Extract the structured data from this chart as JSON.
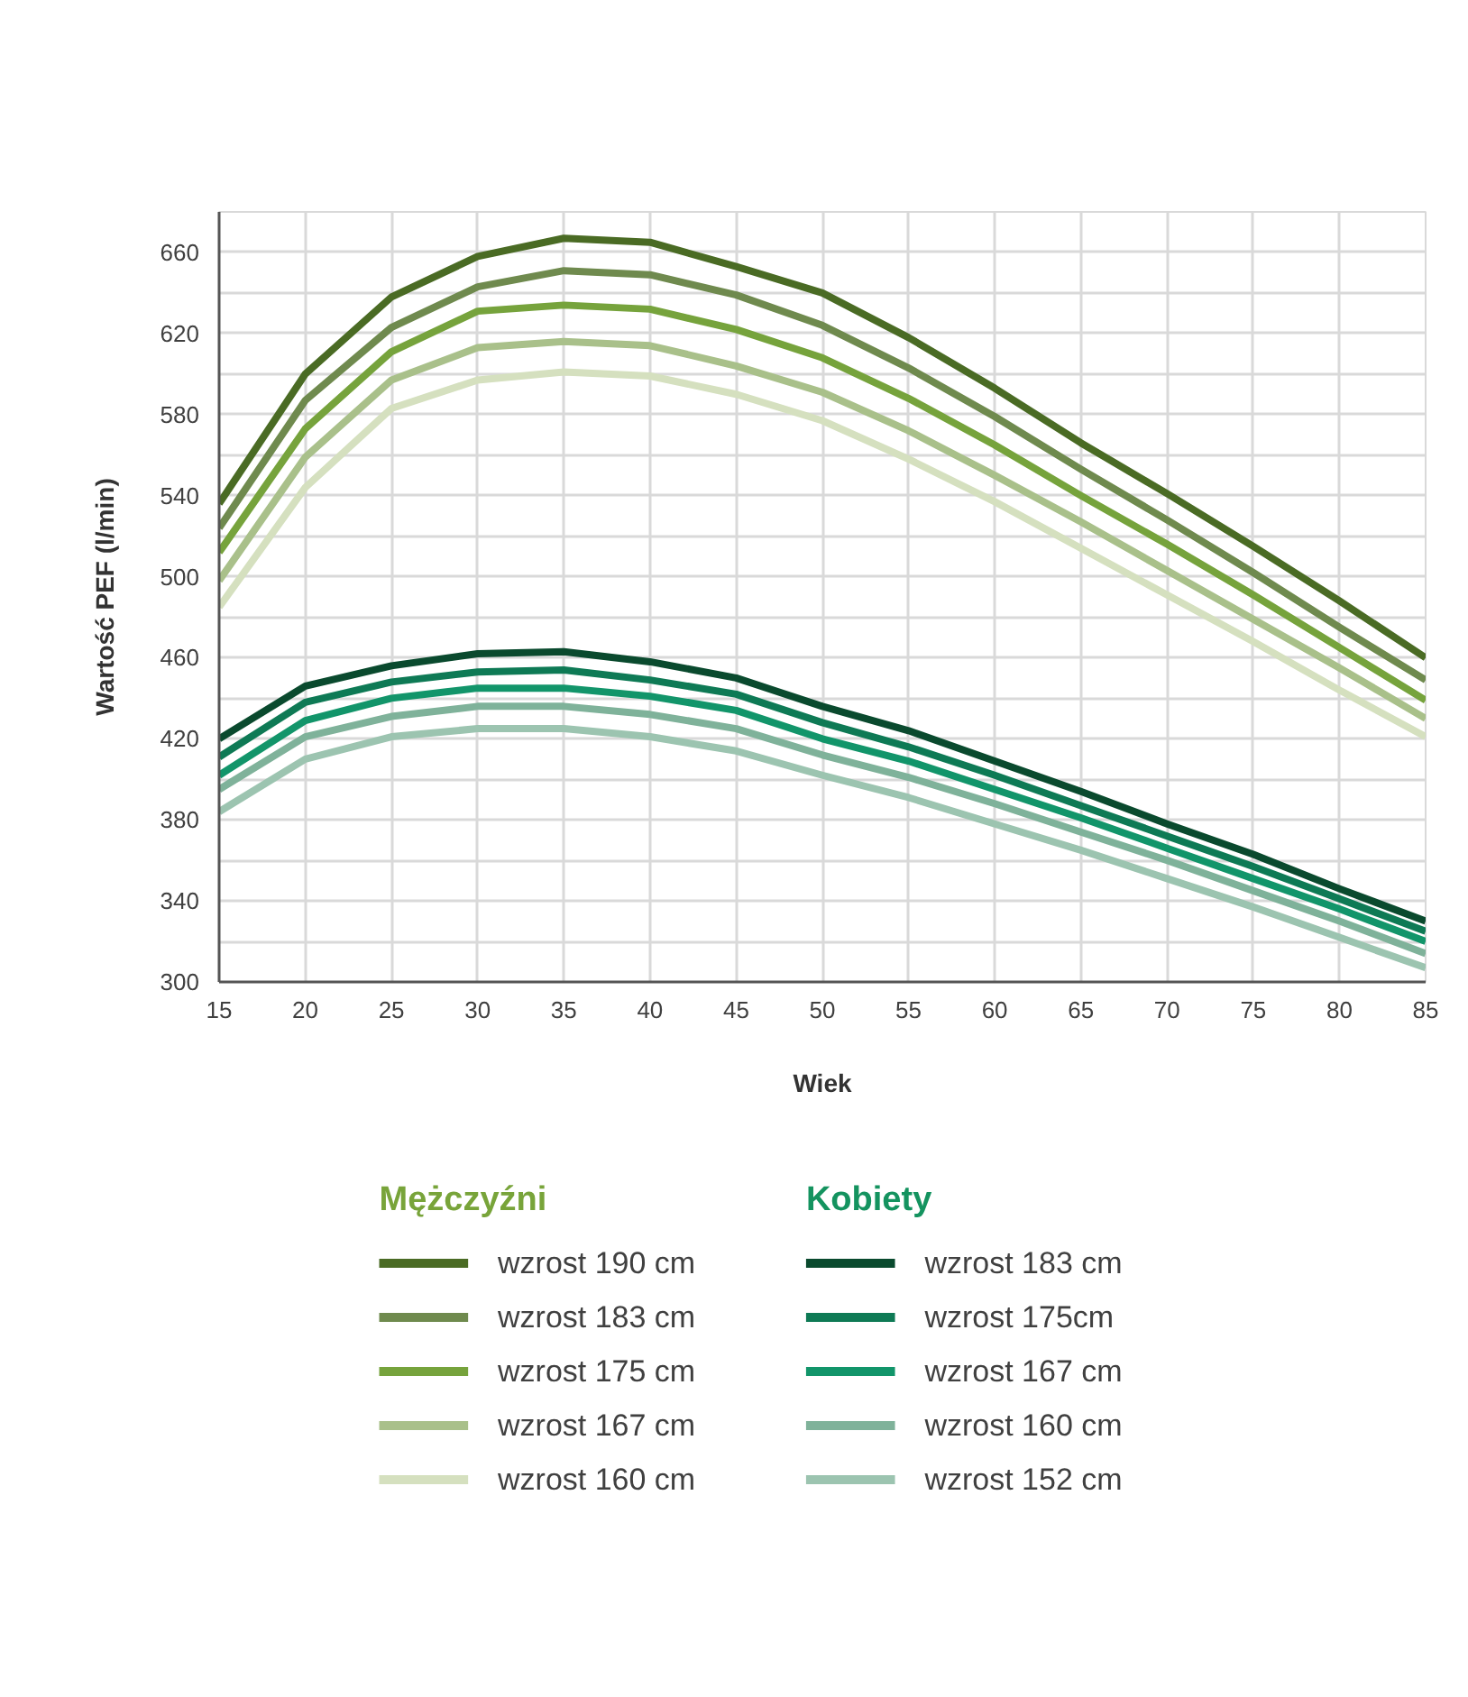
{
  "chart_data": {
    "type": "line",
    "xlabel": "Wiek",
    "ylabel": "Wartość PEF (l/min)",
    "legend_title": [
      "Mężczyźni",
      "Kobiety"
    ],
    "legend": "bottom",
    "grid": true,
    "line_style": "solid",
    "marker": "none",
    "x": [
      15,
      20,
      25,
      30,
      35,
      40,
      45,
      50,
      55,
      60,
      65,
      70,
      75,
      80,
      85
    ],
    "xlim": [
      15,
      85
    ],
    "xticks": [
      15,
      20,
      25,
      30,
      35,
      40,
      45,
      50,
      55,
      60,
      65,
      70,
      75,
      80,
      85
    ],
    "ylim": [
      300,
      680
    ],
    "yticks": [
      300,
      {
        "value": 320,
        "label": null
      },
      340,
      {
        "value": 360,
        "label": null
      },
      380,
      {
        "value": 400,
        "label": null
      },
      420,
      {
        "value": 440,
        "label": null
      },
      460,
      {
        "value": 480,
        "label": null
      },
      500,
      {
        "value": 520,
        "label": null
      },
      540,
      {
        "value": 560,
        "label": null
      },
      580,
      {
        "value": 600,
        "label": null
      },
      620,
      {
        "value": 640,
        "label": null
      },
      660,
      {
        "value": 680,
        "label": null
      }
    ],
    "series": [
      {
        "name": "wzrost 190 cm",
        "color": "#4a6b24",
        "values": [
          536,
          600,
          638,
          658,
          667,
          665,
          653,
          640,
          618,
          593,
          566,
          541,
          515,
          488,
          460
        ]
      },
      {
        "name": "wzrost 183 cm",
        "color": "#6f8a4e",
        "values": [
          524,
          587,
          623,
          643,
          651,
          649,
          639,
          624,
          603,
          579,
          553,
          528,
          502,
          475,
          449
        ]
      },
      {
        "name": "wzrost 175 cm",
        "color": "#76a33c",
        "values": [
          512,
          573,
          611,
          631,
          634,
          632,
          622,
          608,
          588,
          565,
          540,
          516,
          491,
          465,
          439
        ]
      },
      {
        "name": "wzrost 167 cm",
        "color": "#a9c08a",
        "values": [
          498,
          559,
          597,
          613,
          616,
          614,
          604,
          591,
          572,
          550,
          527,
          503,
          479,
          455,
          430
        ]
      },
      {
        "name": "wzrost 160 cm",
        "color": "#d5e0bf",
        "values": [
          485,
          544,
          583,
          597,
          601,
          599,
          590,
          577,
          558,
          537,
          514,
          491,
          468,
          444,
          421
        ]
      },
      {
        "name": "wzrost 183 cm",
        "color": "#0a4a2e",
        "values": [
          420,
          446,
          456,
          462,
          463,
          458,
          450,
          436,
          424,
          409,
          394,
          378,
          363,
          346,
          330
        ]
      },
      {
        "name": "wzrost 175cm",
        "color": "#0e7a55",
        "values": [
          411,
          438,
          448,
          453,
          454,
          449,
          442,
          428,
          416,
          402,
          387,
          372,
          357,
          341,
          325
        ]
      },
      {
        "name": "wzrost 167 cm",
        "color": "#12956a",
        "values": [
          402,
          429,
          440,
          445,
          445,
          441,
          434,
          420,
          409,
          395,
          381,
          366,
          351,
          336,
          320
        ]
      },
      {
        "name": "wzrost 160 cm",
        "color": "#7fb29a",
        "values": [
          395,
          421,
          431,
          436,
          436,
          432,
          425,
          412,
          401,
          388,
          374,
          360,
          345,
          330,
          314
        ]
      },
      {
        "name": "wzrost 152 cm",
        "color": "#9cc4b0",
        "values": [
          384,
          410,
          421,
          425,
          425,
          421,
          414,
          402,
          391,
          378,
          365,
          351,
          337,
          322,
          307
        ]
      }
    ]
  }
}
